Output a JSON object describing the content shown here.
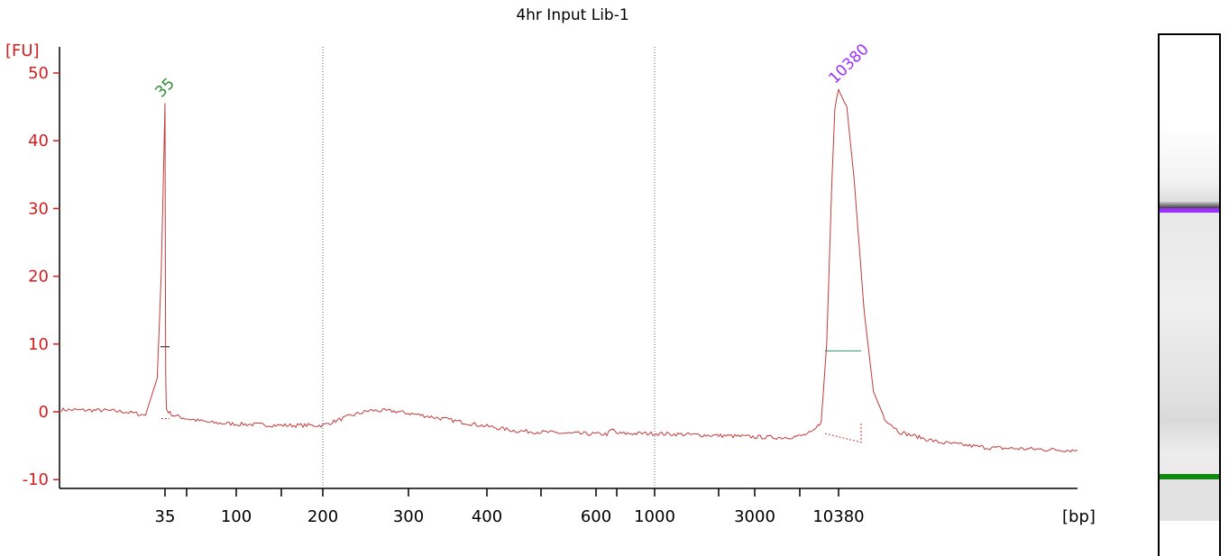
{
  "colors": {
    "axis": "#000000",
    "yaxis_text": "#d21f1f",
    "trace": "#c23b3b",
    "lower_marker": "#2e8b2e",
    "upper_marker": "#9b30ff",
    "peak_line": "#2f8f6f",
    "gridline": "#666666"
  },
  "chart_data": {
    "type": "line",
    "title": "4hr Input Lib-1",
    "ylabel": "[FU]",
    "xlabel": "[bp]",
    "ylim": [
      -11,
      53
    ],
    "y_ticks": [
      -10,
      0,
      10,
      20,
      30,
      40,
      50
    ],
    "x_scale": "ladder (non-linear)",
    "x_ticks": [
      {
        "bp": 35,
        "label": "35"
      },
      {
        "bp": 50,
        "label": ""
      },
      {
        "bp": 100,
        "label": "100"
      },
      {
        "bp": 150,
        "label": ""
      },
      {
        "bp": 200,
        "label": "200"
      },
      {
        "bp": 300,
        "label": "300"
      },
      {
        "bp": 400,
        "label": "400"
      },
      {
        "bp": 500,
        "label": ""
      },
      {
        "bp": 600,
        "label": "600"
      },
      {
        "bp": 700,
        "label": ""
      },
      {
        "bp": 1000,
        "label": "1000"
      },
      {
        "bp": 2000,
        "label": ""
      },
      {
        "bp": 3000,
        "label": "3000"
      },
      {
        "bp": 7000,
        "label": ""
      },
      {
        "bp": 10380,
        "label": "10380"
      }
    ],
    "gridlines_at_bp": [
      200,
      1000
    ],
    "x_range_bp": [
      30,
      25000
    ],
    "series": [
      {
        "points": [
          [
            30,
            0.3
          ],
          [
            32,
            0.2
          ],
          [
            33,
            0.0
          ],
          [
            34,
            -0.5
          ],
          [
            34.6,
            5
          ],
          [
            34.8,
            20
          ],
          [
            35,
            45.5
          ],
          [
            35.2,
            20
          ],
          [
            35.4,
            5
          ],
          [
            35.8,
            0.5
          ],
          [
            37,
            0.0
          ],
          [
            40,
            -0.5
          ],
          [
            50,
            -1.0
          ],
          [
            70,
            -1.6
          ],
          [
            100,
            -1.8
          ],
          [
            150,
            -2.0
          ],
          [
            200,
            -2.0
          ],
          [
            230,
            -0.5
          ],
          [
            250,
            0.2
          ],
          [
            280,
            0.1
          ],
          [
            320,
            -0.6
          ],
          [
            380,
            -1.8
          ],
          [
            450,
            -2.8
          ],
          [
            550,
            -3.2
          ],
          [
            650,
            -3.3
          ],
          [
            680,
            -2.6
          ],
          [
            700,
            -3.2
          ],
          [
            1000,
            -3.2
          ],
          [
            2000,
            -3.5
          ],
          [
            3000,
            -3.7
          ],
          [
            5000,
            -3.8
          ],
          [
            7000,
            -3.6
          ],
          [
            8000,
            -3.0
          ],
          [
            8700,
            -1.5
          ],
          [
            9200,
            10
          ],
          [
            9700,
            34
          ],
          [
            10000,
            45
          ],
          [
            10380,
            47.5
          ],
          [
            10700,
            45
          ],
          [
            11000,
            34
          ],
          [
            11400,
            15
          ],
          [
            11800,
            3
          ],
          [
            12300,
            -1.0
          ],
          [
            13000,
            -3.0
          ],
          [
            15000,
            -4.5
          ],
          [
            18000,
            -5.3
          ],
          [
            25000,
            -5.7
          ]
        ]
      }
    ],
    "peaks": [
      {
        "bp": 35,
        "label": "35",
        "height": 45.5,
        "halfmax": 9.6,
        "color": "#2e8b2e",
        "kind": "lower"
      },
      {
        "bp": 10380,
        "label": "10380",
        "height": 47.5,
        "halfmax": 9.0,
        "color": "#9b30ff",
        "kind": "upper"
      }
    ],
    "legend": "none",
    "grid": "vertical dotted at 200 and 1000"
  },
  "gel": {
    "upper_marker_color": "#9b30ff",
    "lower_marker_color": "#0f8a0f"
  }
}
